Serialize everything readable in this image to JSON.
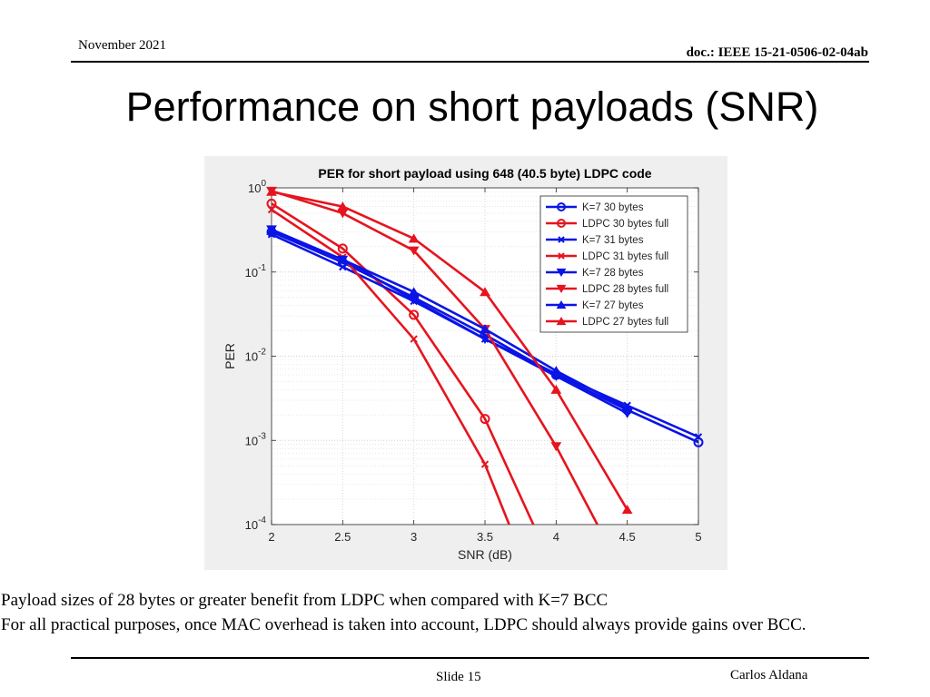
{
  "header": {
    "date": "November 2021",
    "doc_id": "doc.: IEEE 15-21-0506-02-04ab"
  },
  "slide_title": "Performance on short payloads (SNR)",
  "chart_data": {
    "type": "line",
    "title": "PER for short payload using 648 (40.5 byte) LDPC code",
    "xlabel": "SNR (dB)",
    "ylabel": "PER",
    "xlim": [
      2,
      5
    ],
    "ylim": [
      0.0001,
      1
    ],
    "yscale": "log",
    "grid": true,
    "legend_position": "top-right",
    "x_ticks": [
      "2",
      "2.5",
      "3",
      "3.5",
      "4",
      "4.5",
      "5"
    ],
    "y_ticks": [
      {
        "base": "10",
        "exp": "0"
      },
      {
        "base": "10",
        "exp": "-1"
      },
      {
        "base": "10",
        "exp": "-2"
      },
      {
        "base": "10",
        "exp": "-3"
      },
      {
        "base": "10",
        "exp": "-4"
      }
    ],
    "series": [
      {
        "name": "K=7 30 bytes",
        "color": "#0a14e6",
        "marker": "circle",
        "x": [
          2,
          2.5,
          3,
          3.5,
          4,
          4.5,
          5
        ],
        "y": [
          0.3,
          0.13,
          0.05,
          0.018,
          0.006,
          0.0023,
          0.00095
        ]
      },
      {
        "name": "LDPC 30 bytes full",
        "color": "#e6141e",
        "marker": "circle",
        "x": [
          2,
          2.5,
          3,
          3.5,
          3.84
        ],
        "y": [
          0.65,
          0.19,
          0.031,
          0.0018,
          0.0001
        ]
      },
      {
        "name": "K=7 31 bytes",
        "color": "#0a14e6",
        "marker": "x",
        "x": [
          2,
          2.5,
          3,
          3.5,
          4,
          4.5,
          5
        ],
        "y": [
          0.28,
          0.115,
          0.045,
          0.016,
          0.0062,
          0.0026,
          0.0011
        ]
      },
      {
        "name": "LDPC 31 bytes full",
        "color": "#e6141e",
        "marker": "x",
        "x": [
          2,
          2.5,
          3,
          3.5,
          3.67
        ],
        "y": [
          0.55,
          0.15,
          0.016,
          0.00052,
          0.0001
        ]
      },
      {
        "name": "K=7 28 bytes",
        "color": "#0a14e6",
        "marker": "triangle-down",
        "x": [
          2,
          2.5,
          3,
          3.5,
          4,
          4.5
        ],
        "y": [
          0.32,
          0.14,
          0.047,
          0.016,
          0.0058,
          0.0021
        ]
      },
      {
        "name": "LDPC 28 bytes full",
        "color": "#e6141e",
        "marker": "triangle-down",
        "x": [
          2,
          2.5,
          3,
          3.5,
          4,
          4.29
        ],
        "y": [
          0.92,
          0.5,
          0.18,
          0.021,
          0.00085,
          0.0001
        ]
      },
      {
        "name": "K=7 27 bytes",
        "color": "#0a14e6",
        "marker": "triangle-up",
        "x": [
          2,
          2.5,
          3,
          3.5,
          4,
          4.5
        ],
        "y": [
          0.31,
          0.14,
          0.058,
          0.021,
          0.0067,
          0.0024
        ]
      },
      {
        "name": "LDPC 27 bytes full",
        "color": "#e6141e",
        "marker": "triangle-up",
        "x": [
          2,
          2.5,
          3,
          3.5,
          4,
          4.5
        ],
        "y": [
          0.9,
          0.6,
          0.25,
          0.058,
          0.004,
          0.00015
        ]
      }
    ]
  },
  "body_lines": [
    "Payload sizes of 28 bytes or greater benefit from LDPC when compared with K=7 BCC",
    "For all practical purposes, once MAC overhead is taken into account, LDPC should always provide gains over BCC."
  ],
  "footer": {
    "slide": "Slide 15",
    "author": "Carlos Aldana"
  }
}
